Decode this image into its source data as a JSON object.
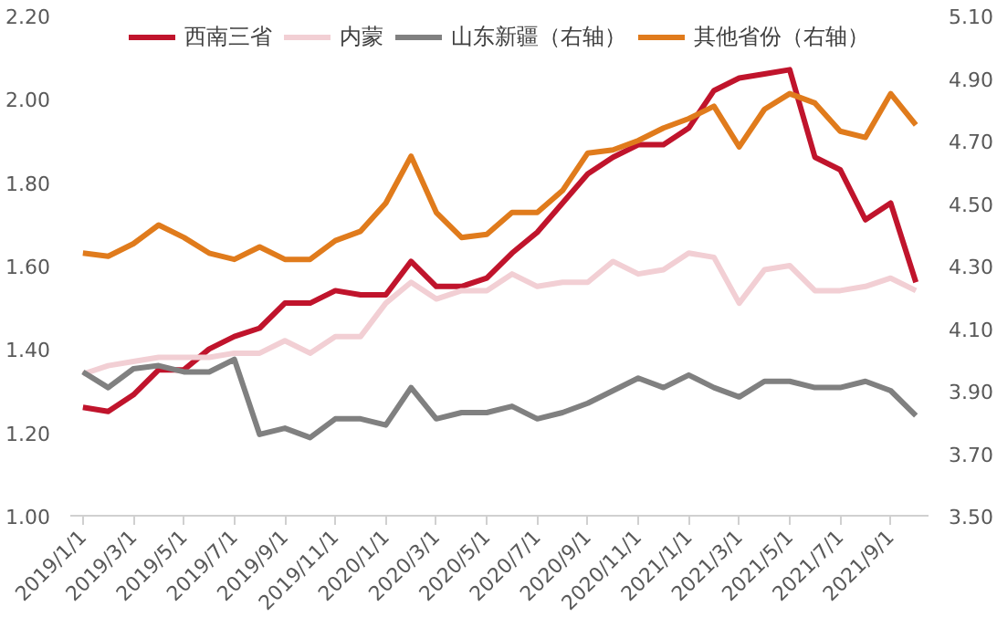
{
  "chart_data": {
    "type": "line",
    "categories": [
      "2019/1/1",
      null,
      "2019/3/1",
      null,
      "2019/5/1",
      null,
      "2019/7/1",
      null,
      "2019/9/1",
      null,
      "2019/11/1",
      null,
      "2020/1/1",
      null,
      "2020/3/1",
      null,
      "2020/5/1",
      null,
      "2020/7/1",
      null,
      "2020/9/1",
      null,
      "2020/11/1",
      null,
      "2021/1/1",
      null,
      "2021/3/1",
      null,
      "2021/5/1",
      null,
      "2021/7/1",
      null,
      "2021/9/1",
      null
    ],
    "series": [
      {
        "name": "西南三省",
        "color": "#c0142c",
        "values": [
          1.26,
          1.25,
          1.29,
          1.35,
          1.35,
          1.4,
          1.43,
          1.45,
          1.51,
          1.51,
          1.54,
          1.53,
          1.53,
          1.61,
          1.55,
          1.55,
          1.57,
          1.63,
          1.68,
          1.75,
          1.82,
          1.86,
          1.89,
          1.89,
          1.93,
          2.02,
          2.05,
          2.06,
          2.07,
          1.86,
          1.83,
          1.71,
          1.75,
          1.56
        ]
      },
      {
        "name": "内蒙",
        "color": "#f2cfd4",
        "values": [
          1.34,
          1.36,
          1.37,
          1.38,
          1.38,
          1.38,
          1.39,
          1.39,
          1.42,
          1.39,
          1.43,
          1.43,
          1.51,
          1.56,
          1.52,
          1.54,
          1.54,
          1.58,
          1.55,
          1.56,
          1.56,
          1.61,
          1.58,
          1.59,
          1.63,
          1.62,
          1.51,
          1.59,
          1.6,
          1.54,
          1.54,
          1.55,
          1.57,
          1.54
        ]
      },
      {
        "name": "山东新疆（右轴）",
        "color": "#808080",
        "axis": "y2",
        "values": [
          3.96,
          3.91,
          3.97,
          3.98,
          3.96,
          3.96,
          4.0,
          3.76,
          3.78,
          3.75,
          3.81,
          3.81,
          3.79,
          3.91,
          3.81,
          3.83,
          3.83,
          3.85,
          3.81,
          3.83,
          3.86,
          3.9,
          3.94,
          3.91,
          3.95,
          3.91,
          3.88,
          3.93,
          3.93,
          3.91,
          3.91,
          3.93,
          3.9,
          3.82
        ]
      },
      {
        "name": "其他省份（右轴）",
        "color": "#e07b1c",
        "axis": "y2",
        "values": [
          4.34,
          4.33,
          4.37,
          4.43,
          4.39,
          4.34,
          4.32,
          4.36,
          4.32,
          4.32,
          4.38,
          4.41,
          4.5,
          4.65,
          4.47,
          4.39,
          4.4,
          4.47,
          4.47,
          4.54,
          4.66,
          4.67,
          4.7,
          4.74,
          4.77,
          4.81,
          4.68,
          4.8,
          4.85,
          4.82,
          4.73,
          4.71,
          4.85,
          4.75
        ]
      }
    ],
    "ylim": [
      1.0,
      2.2
    ],
    "yticks": [
      {
        "value": 1.0,
        "label": "1.00"
      },
      {
        "value": 1.2,
        "label": "1.20"
      },
      {
        "value": 1.4,
        "label": "1.40"
      },
      {
        "value": 1.6,
        "label": "1.60"
      },
      {
        "value": 1.8,
        "label": "1.80"
      },
      {
        "value": 2.0,
        "label": "2.00"
      },
      {
        "value": 2.2,
        "label": "2.20"
      }
    ],
    "y2lim": [
      3.5,
      5.1
    ],
    "y2ticks": [
      {
        "value": 3.5,
        "label": "3.50"
      },
      {
        "value": 3.7,
        "label": "3.70"
      },
      {
        "value": 3.9,
        "label": "3.90"
      },
      {
        "value": 4.1,
        "label": "4.10"
      },
      {
        "value": 4.3,
        "label": "4.30"
      },
      {
        "value": 4.5,
        "label": "4.50"
      },
      {
        "value": 4.7,
        "label": "4.70"
      },
      {
        "value": 4.9,
        "label": "4.90"
      },
      {
        "value": 5.1,
        "label": "5.10"
      }
    ],
    "legend": "top",
    "grid": false,
    "marker": "none",
    "line_style": "solid"
  }
}
